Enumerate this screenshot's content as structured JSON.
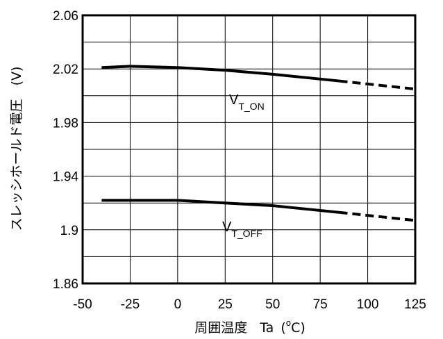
{
  "chart_data": {
    "type": "line",
    "xlabel_main": "周囲温度",
    "xlabel_symbol": "Ta",
    "xlabel_unit_open": "(",
    "xlabel_unit_sup": "o",
    "xlabel_unit_close": "C)",
    "ylabel": "スレッシホールド電圧　(V)",
    "xlim": [
      -50,
      125
    ],
    "ylim": [
      1.86,
      2.06
    ],
    "x_ticks": [
      -50,
      -25,
      0,
      25,
      50,
      75,
      100,
      125
    ],
    "y_ticks": [
      1.86,
      1.9,
      1.94,
      1.98,
      2.02,
      2.06
    ],
    "y_tick_labels": [
      "1.86",
      "1.9",
      "1.94",
      "1.98",
      "2.02",
      "2.06"
    ],
    "x_grid": [
      -25,
      0,
      25,
      50,
      75,
      100
    ],
    "y_grid": [
      1.88,
      1.9,
      1.92,
      1.94,
      1.96,
      1.98,
      2.0,
      2.02,
      2.04
    ],
    "grid": true,
    "series": [
      {
        "label_main": "V",
        "label_sub": "T_ON",
        "solid": {
          "x": [
            -40,
            -25,
            0,
            25,
            50,
            85
          ],
          "y": [
            2.021,
            2.022,
            2.021,
            2.019,
            2.016,
            2.011
          ]
        },
        "dashed": {
          "x": [
            85,
            125
          ],
          "y": [
            2.011,
            2.005
          ]
        }
      },
      {
        "label_main": "V",
        "label_sub": "T_OFF",
        "solid": {
          "x": [
            -40,
            -25,
            0,
            25,
            50,
            85
          ],
          "y": [
            1.922,
            1.922,
            1.922,
            1.92,
            1.918,
            1.913
          ]
        },
        "dashed": {
          "x": [
            85,
            125
          ],
          "y": [
            1.913,
            1.907
          ]
        }
      }
    ]
  }
}
